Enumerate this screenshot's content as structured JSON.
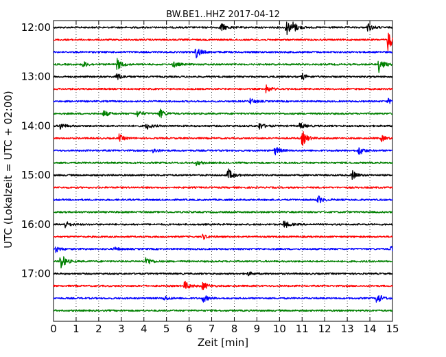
{
  "chart_data": {
    "type": "line",
    "title": "BW.BE1..HHZ 2017-04-12",
    "xlabel": "Zeit  [min]",
    "ylabel": "UTC (Lokalzeit = UTC + 02:00)",
    "xlim": [
      0,
      15
    ],
    "x_ticks": [
      "0",
      "1",
      "2",
      "3",
      "4",
      "5",
      "6",
      "7",
      "8",
      "9",
      "10",
      "11",
      "12",
      "13",
      "14",
      "15"
    ],
    "y_ticks": [
      {
        "label": "12:00",
        "trace": 0
      },
      {
        "label": "13:00",
        "trace": 4
      },
      {
        "label": "14:00",
        "trace": 8
      },
      {
        "label": "15:00",
        "trace": 12
      },
      {
        "label": "16:00",
        "trace": 16
      },
      {
        "label": "17:00",
        "trace": 20
      }
    ],
    "grid": "vertical-dotted",
    "trace_interval_minutes": 15,
    "colors": [
      "#000000",
      "#ff0000",
      "#0000ff",
      "#008000"
    ],
    "traces": [
      {
        "start": "12:00",
        "color": "#000000",
        "events": [
          {
            "t": 7.4,
            "a": 0.8
          },
          {
            "t": 10.3,
            "a": 1.3
          },
          {
            "t": 10.6,
            "a": 0.7
          },
          {
            "t": 13.9,
            "a": 0.7
          }
        ]
      },
      {
        "start": "12:15",
        "color": "#ff0000",
        "events": [
          {
            "t": 14.8,
            "a": 1.8
          }
        ]
      },
      {
        "start": "12:30",
        "color": "#0000ff",
        "events": [
          {
            "t": 6.3,
            "a": 1.0
          }
        ]
      },
      {
        "start": "12:45",
        "color": "#008000",
        "events": [
          {
            "t": 1.3,
            "a": 0.5
          },
          {
            "t": 2.8,
            "a": 1.0
          },
          {
            "t": 5.3,
            "a": 0.5
          },
          {
            "t": 14.4,
            "a": 1.2
          }
        ]
      },
      {
        "start": "13:00",
        "color": "#000000",
        "events": [
          {
            "t": 2.8,
            "a": 0.6
          },
          {
            "t": 11.0,
            "a": 0.5
          }
        ]
      },
      {
        "start": "13:15",
        "color": "#ff0000",
        "events": [
          {
            "t": 9.4,
            "a": 0.6
          }
        ]
      },
      {
        "start": "13:30",
        "color": "#0000ff",
        "events": [
          {
            "t": 8.7,
            "a": 0.5
          },
          {
            "t": 14.8,
            "a": 0.4
          }
        ]
      },
      {
        "start": "13:45",
        "color": "#008000",
        "events": [
          {
            "t": 2.2,
            "a": 0.6
          },
          {
            "t": 3.7,
            "a": 0.5
          },
          {
            "t": 4.7,
            "a": 0.8
          }
        ]
      },
      {
        "start": "14:00",
        "color": "#000000",
        "events": [
          {
            "t": 0.3,
            "a": 0.5
          },
          {
            "t": 4.1,
            "a": 0.6
          },
          {
            "t": 9.1,
            "a": 0.6
          },
          {
            "t": 10.9,
            "a": 0.5
          }
        ]
      },
      {
        "start": "14:15",
        "color": "#ff0000",
        "events": [
          {
            "t": 2.9,
            "a": 0.6
          },
          {
            "t": 11.0,
            "a": 1.3
          },
          {
            "t": 14.5,
            "a": 0.5
          }
        ]
      },
      {
        "start": "14:30",
        "color": "#0000ff",
        "events": [
          {
            "t": 4.4,
            "a": 0.4
          },
          {
            "t": 9.8,
            "a": 0.7
          },
          {
            "t": 13.5,
            "a": 0.8
          }
        ]
      },
      {
        "start": "14:45",
        "color": "#008000",
        "events": [
          {
            "t": 6.3,
            "a": 0.4
          }
        ]
      },
      {
        "start": "15:00",
        "color": "#000000",
        "events": [
          {
            "t": 7.7,
            "a": 1.2
          },
          {
            "t": 13.2,
            "a": 0.8
          }
        ]
      },
      {
        "start": "15:15",
        "color": "#ff0000",
        "events": []
      },
      {
        "start": "15:30",
        "color": "#0000ff",
        "events": [
          {
            "t": 11.7,
            "a": 0.7
          }
        ]
      },
      {
        "start": "15:45",
        "color": "#008000",
        "events": []
      },
      {
        "start": "16:00",
        "color": "#000000",
        "events": [
          {
            "t": 0.5,
            "a": 0.6
          },
          {
            "t": 10.2,
            "a": 0.7
          }
        ]
      },
      {
        "start": "16:15",
        "color": "#ff0000",
        "events": [
          {
            "t": 6.6,
            "a": 0.4
          }
        ]
      },
      {
        "start": "16:30",
        "color": "#0000ff",
        "events": [
          {
            "t": 0.1,
            "a": 0.5
          },
          {
            "t": 2.7,
            "a": 0.3
          },
          {
            "t": 14.9,
            "a": 0.5
          }
        ]
      },
      {
        "start": "16:45",
        "color": "#008000",
        "events": [
          {
            "t": 0.3,
            "a": 1.5
          },
          {
            "t": 4.1,
            "a": 0.8
          }
        ]
      },
      {
        "start": "17:00",
        "color": "#000000",
        "events": [
          {
            "t": 8.6,
            "a": 0.3
          }
        ]
      },
      {
        "start": "17:15",
        "color": "#ff0000",
        "events": [
          {
            "t": 5.8,
            "a": 0.8
          },
          {
            "t": 6.6,
            "a": 0.7
          }
        ]
      },
      {
        "start": "17:30",
        "color": "#0000ff",
        "events": [
          {
            "t": 4.9,
            "a": 0.4
          },
          {
            "t": 6.6,
            "a": 0.7
          },
          {
            "t": 14.3,
            "a": 1.0
          }
        ]
      },
      {
        "start": "17:45",
        "color": "#008000",
        "events": []
      }
    ]
  }
}
